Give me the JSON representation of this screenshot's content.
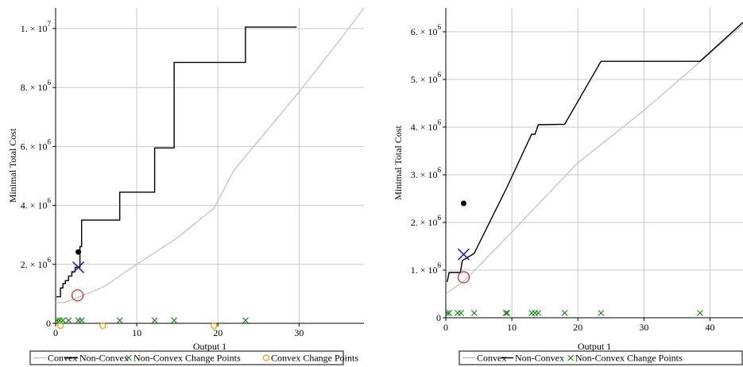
{
  "chart_data": [
    {
      "type": "line",
      "title": "",
      "xlabel": "Output 1",
      "ylabel": "Minimal Total Cost",
      "xlim": [
        0,
        38
      ],
      "ylim": [
        0,
        10700000
      ],
      "x_ticks": [
        0,
        10,
        20,
        30
      ],
      "y_ticks": [
        {
          "value": 0,
          "mantissa": "0",
          "exp": ""
        },
        {
          "value": 2000000,
          "mantissa": "2. × 10",
          "exp": "6"
        },
        {
          "value": 4000000,
          "mantissa": "4. × 10",
          "exp": "6"
        },
        {
          "value": 6000000,
          "mantissa": "6. × 10",
          "exp": "6"
        },
        {
          "value": 8000000,
          "mantissa": "8. × 10",
          "exp": "6"
        },
        {
          "value": 10000000,
          "mantissa": "1. × 10",
          "exp": "7"
        }
      ],
      "grid": true,
      "legend_position": "bottom",
      "legend": [
        {
          "label": "Convex",
          "marker": "line",
          "color": "#c0c0c0"
        },
        {
          "label": "Non-Convex",
          "marker": "line",
          "color": "#000000"
        },
        {
          "label": "Non-Convex Change Points",
          "marker": "x",
          "color": "#1a8a1a"
        },
        {
          "label": "Convex Change Points",
          "marker": "o",
          "color": "#f0a000"
        }
      ],
      "series": [
        {
          "name": "Convex",
          "kind": "line",
          "color": "#c0c0c0",
          "points": [
            [
              0,
              700000
            ],
            [
              1,
              700000
            ],
            [
              3,
              900000
            ],
            [
              6,
              1250000
            ],
            [
              10,
              2000000
            ],
            [
              15,
              2900000
            ],
            [
              19.5,
              3900000
            ],
            [
              22,
              5200000
            ],
            [
              30,
              7850000
            ],
            [
              35,
              9600000
            ],
            [
              38,
              10700000
            ]
          ]
        },
        {
          "name": "Non-Convex",
          "kind": "line",
          "color": "#000000",
          "points": [
            [
              0.1,
              900000
            ],
            [
              0.6,
              900000
            ],
            [
              0.6,
              1200000
            ],
            [
              0.9,
              1200000
            ],
            [
              0.9,
              1350000
            ],
            [
              1.2,
              1350000
            ],
            [
              1.2,
              1450000
            ],
            [
              1.6,
              1450000
            ],
            [
              1.6,
              1600000
            ],
            [
              2.0,
              1600000
            ],
            [
              2.0,
              1750000
            ],
            [
              2.4,
              1750000
            ],
            [
              2.4,
              1900000
            ],
            [
              3.0,
              1900000
            ],
            [
              3.0,
              2600000
            ],
            [
              3.2,
              2600000
            ],
            [
              3.2,
              3500000
            ],
            [
              7.9,
              3500000
            ],
            [
              7.9,
              4450000
            ],
            [
              12.2,
              4450000
            ],
            [
              12.2,
              5950000
            ],
            [
              14.6,
              5950000
            ],
            [
              14.6,
              8850000
            ],
            [
              23.4,
              8850000
            ],
            [
              23.4,
              10050000
            ],
            [
              29.7,
              10050000
            ]
          ]
        },
        {
          "name": "Non-Convex Change Points",
          "kind": "x",
          "color": "#1a8a1a",
          "points": [
            [
              0.2,
              100000
            ],
            [
              0.5,
              100000
            ],
            [
              0.9,
              100000
            ],
            [
              1.6,
              100000
            ],
            [
              2.8,
              100000
            ],
            [
              3.2,
              100000
            ],
            [
              7.9,
              100000
            ],
            [
              12.2,
              100000
            ],
            [
              14.6,
              100000
            ],
            [
              23.4,
              100000
            ]
          ]
        },
        {
          "name": "Convex Change Points",
          "kind": "o",
          "color": "#f0a000",
          "points": [
            [
              0.6,
              -80000
            ],
            [
              5.8,
              -80000
            ],
            [
              19.5,
              -80000
            ]
          ]
        },
        {
          "kind": "dot",
          "color": "#000000",
          "points": [
            [
              2.8,
              2420000
            ]
          ]
        },
        {
          "kind": "bigx",
          "color": "#2222cc",
          "points": [
            [
              2.8,
              1900000
            ]
          ]
        },
        {
          "kind": "bigo",
          "color": "#e03030",
          "points": [
            [
              2.7,
              950000
            ]
          ]
        }
      ]
    },
    {
      "type": "line",
      "title": "",
      "xlabel": "Output 1",
      "ylabel": "Minimal Total Cost",
      "xlim": [
        0,
        45
      ],
      "ylim": [
        0,
        6500000
      ],
      "x_ticks": [
        0,
        10,
        20,
        30,
        40
      ],
      "y_ticks": [
        {
          "value": 0,
          "mantissa": "0",
          "exp": ""
        },
        {
          "value": 1000000,
          "mantissa": "1. × 10",
          "exp": "6"
        },
        {
          "value": 2000000,
          "mantissa": "2. × 10",
          "exp": "6"
        },
        {
          "value": 3000000,
          "mantissa": "3. × 10",
          "exp": "6"
        },
        {
          "value": 4000000,
          "mantissa": "4. × 10",
          "exp": "6"
        },
        {
          "value": 5000000,
          "mantissa": "5. × 10",
          "exp": "6"
        },
        {
          "value": 6000000,
          "mantissa": "6. × 10",
          "exp": "6"
        }
      ],
      "grid": true,
      "legend_position": "bottom",
      "legend": [
        {
          "label": "Convex",
          "marker": "line",
          "color": "#c0c0c0"
        },
        {
          "label": "Non-Convex",
          "marker": "line",
          "color": "#000000"
        },
        {
          "label": "Non-Convex Change Points",
          "marker": "x",
          "color": "#1a8a1a"
        }
      ],
      "series": [
        {
          "name": "Convex",
          "kind": "line",
          "color": "#c0c0c0",
          "points": [
            [
              0,
              500000
            ],
            [
              3,
              800000
            ],
            [
              10,
              1800000
            ],
            [
              20,
              3250000
            ],
            [
              30,
              4350000
            ],
            [
              40,
              5550000
            ],
            [
              45,
              6150000
            ]
          ]
        },
        {
          "name": "Non-Convex",
          "kind": "line",
          "color": "#000000",
          "points": [
            [
              0.2,
              750000
            ],
            [
              0.5,
              950000
            ],
            [
              2.2,
              950000
            ],
            [
              2.5,
              1200000
            ],
            [
              4.3,
              1350000
            ],
            [
              9.3,
              2750000
            ],
            [
              13.0,
              3850000
            ],
            [
              13.5,
              3850000
            ],
            [
              14.0,
              4050000
            ],
            [
              18.0,
              4060000
            ],
            [
              23.5,
              5380000
            ],
            [
              38.5,
              5380000
            ],
            [
              45,
              6200000
            ]
          ]
        },
        {
          "name": "Non-Convex Change Points",
          "kind": "x",
          "color": "#1a8a1a",
          "points": [
            [
              0.2,
              100000
            ],
            [
              0.5,
              100000
            ],
            [
              1.8,
              100000
            ],
            [
              2.3,
              100000
            ],
            [
              4.3,
              100000
            ],
            [
              9.1,
              100000
            ],
            [
              9.3,
              100000
            ],
            [
              13.0,
              100000
            ],
            [
              13.5,
              100000
            ],
            [
              14.0,
              100000
            ],
            [
              18.0,
              100000
            ],
            [
              23.5,
              100000
            ],
            [
              38.5,
              100000
            ]
          ]
        },
        {
          "kind": "dot",
          "color": "#000000",
          "points": [
            [
              2.7,
              2400000
            ]
          ]
        },
        {
          "kind": "bigx",
          "color": "#2222cc",
          "points": [
            [
              2.7,
              1330000
            ]
          ]
        },
        {
          "kind": "bigo",
          "color": "#e03030",
          "points": [
            [
              2.7,
              850000
            ]
          ]
        }
      ]
    }
  ]
}
